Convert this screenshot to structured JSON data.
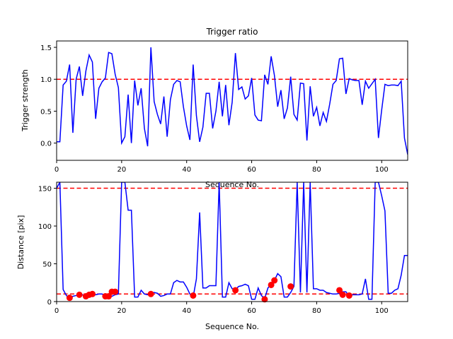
{
  "chart_data": [
    {
      "type": "line",
      "title": "Trigger ratio",
      "xlabel": "Sequence No.",
      "ylabel": "Trigger strength",
      "xlim": [
        0,
        108
      ],
      "ylim": [
        -0.27,
        1.6
      ],
      "xticks": [
        0,
        20,
        40,
        60,
        80,
        100
      ],
      "yticks": [
        0.0,
        0.5,
        1.0,
        1.5
      ],
      "ytick_labels": [
        "0.0",
        "0.5",
        "1.0",
        "1.5"
      ],
      "grid": false,
      "line_color": "#0000ff",
      "threshold": {
        "value": 1.0,
        "color": "#ff0000",
        "style": "dashed"
      },
      "series": [
        {
          "values": [
            0.02,
            0.02,
            0.91,
            0.97,
            1.23,
            0.16,
            1.0,
            1.2,
            0.74,
            1.13,
            1.38,
            1.27,
            0.38,
            0.86,
            0.96,
            1.02,
            1.42,
            1.4,
            1.08,
            0.87,
            0.0,
            0.1,
            0.76,
            0.0,
            0.98,
            0.59,
            0.86,
            0.23,
            -0.05,
            1.5,
            0.65,
            0.45,
            0.3,
            0.73,
            0.1,
            0.68,
            0.92,
            0.98,
            0.96,
            0.57,
            0.27,
            0.05,
            1.23,
            0.43,
            0.02,
            0.25,
            0.78,
            0.78,
            0.23,
            0.5,
            0.96,
            0.42,
            0.91,
            0.28,
            0.64,
            1.41,
            0.84,
            0.88,
            0.69,
            0.74,
            1.02,
            0.44,
            0.36,
            0.35,
            1.07,
            0.92,
            1.36,
            1.06,
            0.57,
            0.83,
            0.38,
            0.55,
            1.04,
            0.45,
            0.36,
            0.94,
            0.93,
            0.04,
            0.89,
            0.42,
            0.56,
            0.27,
            0.48,
            0.34,
            0.61,
            0.92,
            0.98,
            1.32,
            1.33,
            0.77,
            1.01,
            0.99,
            0.98,
            0.98,
            0.6,
            0.97,
            0.86,
            0.93,
            1.0,
            0.08,
            0.52,
            0.92,
            0.9,
            0.91,
            0.91,
            0.9,
            0.97,
            0.08,
            -0.18
          ]
        }
      ]
    },
    {
      "type": "line",
      "title": "",
      "xlabel": "Sequence No.",
      "ylabel": "Distance [pix]",
      "xlim": [
        0,
        108
      ],
      "ylim": [
        0,
        158
      ],
      "xticks": [
        0,
        20,
        40,
        60,
        80,
        100
      ],
      "yticks": [
        0,
        50,
        100,
        150
      ],
      "grid": false,
      "line_color": "#0000ff",
      "marker_color": "#ff0000",
      "thresholds": [
        {
          "value": 150,
          "color": "#ff0000",
          "style": "dashed"
        },
        {
          "value": 10,
          "color": "#ff0000",
          "style": "dashed"
        }
      ],
      "series": [
        {
          "values": [
            150,
            158,
            16,
            8,
            4,
            7,
            8,
            9,
            9,
            6,
            8,
            9,
            9,
            10,
            10,
            7,
            6,
            7,
            9,
            10,
            158,
            158,
            121,
            121,
            6,
            6,
            15,
            10,
            9,
            11,
            12,
            11,
            7,
            8,
            10,
            10,
            25,
            28,
            26,
            26,
            19,
            10,
            6,
            30,
            118,
            18,
            18,
            21,
            21,
            21,
            158,
            6,
            6,
            25,
            17,
            16,
            20,
            21,
            23,
            21,
            3,
            3,
            18,
            8,
            4,
            18,
            23,
            28,
            37,
            33,
            6,
            6,
            12,
            20,
            158,
            12,
            158,
            12,
            158,
            17,
            17,
            15,
            15,
            12,
            11,
            10,
            10,
            11,
            13,
            13,
            7,
            9,
            9,
            9,
            10,
            30,
            3,
            3,
            158,
            158,
            140,
            120,
            11,
            11,
            15,
            17,
            35,
            61,
            61
          ]
        },
        {
          "name": "markers",
          "x": [
            4,
            7,
            9,
            10,
            11,
            15,
            16,
            17,
            18,
            29,
            42,
            55,
            64,
            66,
            67,
            72,
            87,
            88,
            90
          ],
          "y": [
            5,
            9,
            7,
            9,
            10,
            7,
            7,
            13,
            13,
            10,
            8,
            15,
            3,
            22,
            28,
            20,
            15,
            9,
            8
          ]
        }
      ]
    }
  ]
}
